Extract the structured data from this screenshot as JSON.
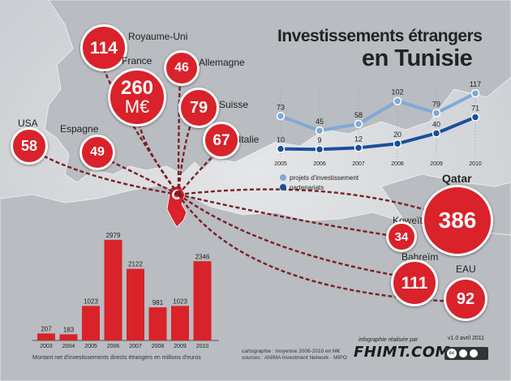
{
  "title": {
    "line1": "Investissements étrangers",
    "line2": "en Tunisie"
  },
  "countries": [
    {
      "id": "royaume-uni",
      "label": "Royaume-Uni",
      "value": "114"
    },
    {
      "id": "france",
      "label": "France",
      "value": "260",
      "unit": "M€"
    },
    {
      "id": "allemagne",
      "label": "Allemagne",
      "value": "46"
    },
    {
      "id": "suisse",
      "label": "Suisse",
      "value": "79"
    },
    {
      "id": "italie",
      "label": "Italie",
      "value": "67"
    },
    {
      "id": "usa",
      "label": "USA",
      "value": "58"
    },
    {
      "id": "espagne",
      "label": "Espagne",
      "value": "49"
    },
    {
      "id": "qatar",
      "label": "Qatar",
      "value": "386"
    },
    {
      "id": "koweit",
      "label": "Koweït",
      "value": "34"
    },
    {
      "id": "bahrein",
      "label": "Bahreïm",
      "value": "111"
    },
    {
      "id": "eau",
      "label": "EAU",
      "value": "92"
    }
  ],
  "colors": {
    "red": "#d9222a",
    "light_blue": "#7fa9d8",
    "dark_blue": "#1a4f9c"
  },
  "chart_data": [
    {
      "type": "line",
      "x": [
        2005,
        2006,
        2007,
        2008,
        2009,
        2010
      ],
      "series": [
        {
          "name": "projets d'investissement",
          "values": [
            73,
            45,
            58,
            102,
            79,
            117
          ],
          "color": "#7fa9d8"
        },
        {
          "name": "partenariats",
          "values": [
            10,
            9,
            12,
            20,
            40,
            71
          ],
          "color": "#1a4f9c"
        }
      ],
      "ylim": [
        0,
        125
      ]
    },
    {
      "type": "bar",
      "categories": [
        "2003",
        "2004",
        "2005",
        "2006",
        "2007",
        "2008",
        "2009",
        "2010"
      ],
      "values": [
        207,
        183,
        1023,
        2979,
        2122,
        981,
        1023,
        2346
      ],
      "xlabel": "Montant net d'investissements directs étrangers en millions d'euros",
      "ylim": [
        0,
        3000
      ],
      "color": "#d9222a"
    }
  ],
  "credits": {
    "realise_par": "infographie réalisée par",
    "logo": "FHIMT.COM",
    "version": "v1.0 avril 2011",
    "cartographie": "cartographie : moyenne 2006-2010 en M€",
    "sources": "sources : ANIMA Investment Network - MIPO",
    "license_badge": "cc"
  }
}
